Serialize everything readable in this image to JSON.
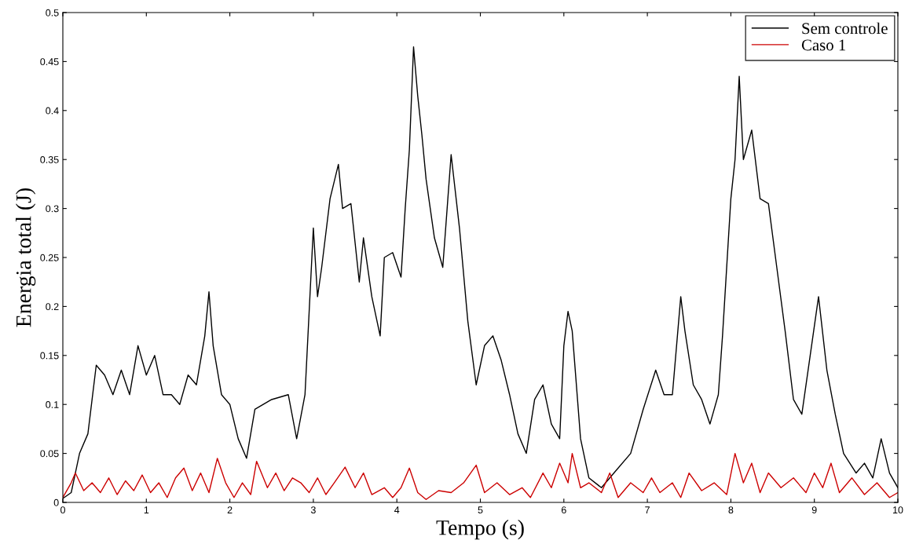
{
  "chart_data": {
    "type": "line",
    "xlabel": "Tempo (s)",
    "ylabel": "Energia total (J)",
    "xlim": [
      0,
      10
    ],
    "ylim": [
      0,
      0.5
    ],
    "xticks": [
      0,
      1,
      2,
      3,
      4,
      5,
      6,
      7,
      8,
      9,
      10
    ],
    "yticks": [
      0,
      0.05,
      0.1,
      0.15,
      0.2,
      0.25,
      0.3,
      0.35,
      0.4,
      0.45,
      0.5
    ],
    "grid": false,
    "legend": "top right",
    "marker": "none",
    "line_style": "solid",
    "series": [
      {
        "name": "Sem controle",
        "color": "#000000",
        "x": [
          0,
          0.1,
          0.15,
          0.2,
          0.3,
          0.4,
          0.5,
          0.6,
          0.7,
          0.8,
          0.9,
          1.0,
          1.1,
          1.2,
          1.3,
          1.4,
          1.5,
          1.6,
          1.7,
          1.75,
          1.8,
          1.9,
          2.0,
          2.1,
          2.2,
          2.3,
          2.5,
          2.7,
          2.8,
          2.9,
          3.0,
          3.05,
          3.1,
          3.2,
          3.3,
          3.35,
          3.45,
          3.55,
          3.6,
          3.7,
          3.8,
          3.85,
          3.95,
          4.05,
          4.1,
          4.15,
          4.2,
          4.25,
          4.3,
          4.35,
          4.45,
          4.55,
          4.65,
          4.75,
          4.85,
          4.95,
          5.05,
          5.15,
          5.25,
          5.35,
          5.45,
          5.55,
          5.65,
          5.75,
          5.85,
          5.95,
          6.0,
          6.05,
          6.1,
          6.2,
          6.3,
          6.45,
          6.6,
          6.8,
          6.95,
          7.1,
          7.2,
          7.3,
          7.4,
          7.45,
          7.55,
          7.65,
          7.75,
          7.85,
          7.9,
          8.0,
          8.05,
          8.1,
          8.15,
          8.25,
          8.35,
          8.45,
          8.55,
          8.65,
          8.75,
          8.85,
          8.95,
          9.05,
          9.15,
          9.25,
          9.35,
          9.5,
          9.6,
          9.7,
          9.8,
          9.9,
          10.0
        ],
        "values": [
          0.004,
          0.01,
          0.03,
          0.05,
          0.07,
          0.14,
          0.13,
          0.11,
          0.135,
          0.11,
          0.16,
          0.13,
          0.15,
          0.11,
          0.11,
          0.1,
          0.13,
          0.12,
          0.17,
          0.215,
          0.16,
          0.11,
          0.1,
          0.065,
          0.045,
          0.095,
          0.105,
          0.11,
          0.065,
          0.11,
          0.28,
          0.21,
          0.24,
          0.31,
          0.345,
          0.3,
          0.305,
          0.225,
          0.27,
          0.21,
          0.17,
          0.25,
          0.255,
          0.23,
          0.3,
          0.36,
          0.465,
          0.415,
          0.375,
          0.33,
          0.27,
          0.24,
          0.355,
          0.28,
          0.185,
          0.12,
          0.16,
          0.17,
          0.145,
          0.11,
          0.07,
          0.05,
          0.105,
          0.12,
          0.08,
          0.065,
          0.16,
          0.195,
          0.175,
          0.065,
          0.025,
          0.015,
          0.03,
          0.05,
          0.095,
          0.135,
          0.11,
          0.11,
          0.21,
          0.175,
          0.12,
          0.105,
          0.08,
          0.11,
          0.17,
          0.31,
          0.35,
          0.435,
          0.35,
          0.38,
          0.31,
          0.305,
          0.24,
          0.175,
          0.105,
          0.09,
          0.15,
          0.21,
          0.135,
          0.09,
          0.05,
          0.03,
          0.04,
          0.025,
          0.065,
          0.03,
          0.015
        ]
      },
      {
        "name": "Caso 1",
        "color": "#cc0000",
        "x": [
          0,
          0.1,
          0.15,
          0.25,
          0.35,
          0.45,
          0.55,
          0.65,
          0.75,
          0.85,
          0.95,
          1.05,
          1.15,
          1.25,
          1.35,
          1.45,
          1.55,
          1.65,
          1.75,
          1.85,
          1.95,
          2.05,
          2.15,
          2.25,
          2.32,
          2.45,
          2.55,
          2.65,
          2.75,
          2.85,
          2.95,
          3.05,
          3.15,
          3.25,
          3.38,
          3.5,
          3.6,
          3.7,
          3.85,
          3.95,
          4.05,
          4.15,
          4.25,
          4.35,
          4.5,
          4.65,
          4.8,
          4.95,
          5.05,
          5.2,
          5.35,
          5.5,
          5.6,
          5.75,
          5.85,
          5.95,
          6.05,
          6.1,
          6.2,
          6.3,
          6.45,
          6.55,
          6.65,
          6.8,
          6.95,
          7.05,
          7.15,
          7.3,
          7.4,
          7.5,
          7.65,
          7.8,
          7.95,
          8.05,
          8.15,
          8.25,
          8.35,
          8.45,
          8.6,
          8.75,
          8.9,
          9.0,
          9.1,
          9.2,
          9.3,
          9.45,
          9.6,
          9.75,
          9.9,
          10.0
        ],
        "values": [
          0.005,
          0.02,
          0.03,
          0.012,
          0.02,
          0.01,
          0.025,
          0.008,
          0.022,
          0.012,
          0.028,
          0.01,
          0.02,
          0.005,
          0.025,
          0.035,
          0.012,
          0.03,
          0.01,
          0.045,
          0.02,
          0.005,
          0.02,
          0.008,
          0.042,
          0.015,
          0.03,
          0.012,
          0.025,
          0.02,
          0.01,
          0.025,
          0.008,
          0.02,
          0.036,
          0.015,
          0.03,
          0.008,
          0.015,
          0.005,
          0.015,
          0.035,
          0.01,
          0.003,
          0.012,
          0.01,
          0.02,
          0.038,
          0.01,
          0.02,
          0.008,
          0.015,
          0.005,
          0.03,
          0.015,
          0.04,
          0.02,
          0.05,
          0.015,
          0.02,
          0.01,
          0.03,
          0.005,
          0.02,
          0.01,
          0.025,
          0.01,
          0.02,
          0.005,
          0.03,
          0.012,
          0.02,
          0.008,
          0.05,
          0.02,
          0.04,
          0.01,
          0.03,
          0.015,
          0.025,
          0.01,
          0.03,
          0.015,
          0.04,
          0.01,
          0.025,
          0.008,
          0.02,
          0.005,
          0.01
        ]
      }
    ]
  }
}
